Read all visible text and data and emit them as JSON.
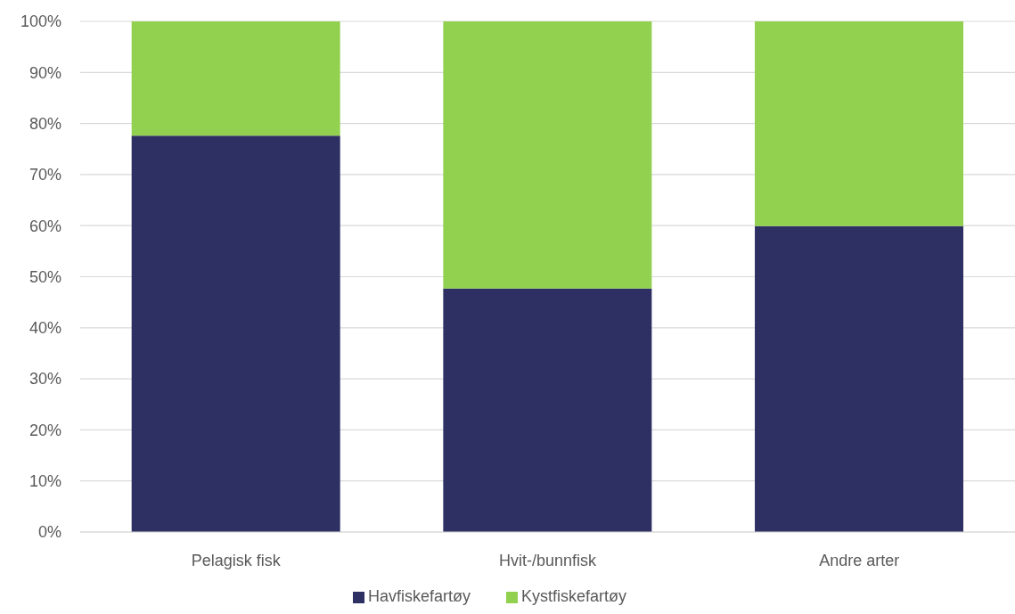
{
  "chart_data": {
    "type": "bar",
    "categories": [
      "Pelagisk fisk",
      "Hvit-/bunnfisk",
      "Andre arter"
    ],
    "series": [
      {
        "name": "Havfiskefartøy",
        "color": "#2e3064",
        "values": [
          77.6,
          47.7,
          59.9
        ]
      },
      {
        "name": "Kystfiskefartøy",
        "color": "#92d050",
        "values": [
          22.4,
          52.3,
          40.1
        ]
      }
    ],
    "stacked": true,
    "ylim": [
      0,
      100
    ],
    "yticks": [
      {
        "value": 0,
        "label": "0%"
      },
      {
        "value": 10,
        "label": "10%"
      },
      {
        "value": 20,
        "label": "20%"
      },
      {
        "value": 30,
        "label": "30%"
      },
      {
        "value": 40,
        "label": "40%"
      },
      {
        "value": 50,
        "label": "50%"
      },
      {
        "value": 60,
        "label": "60%"
      },
      {
        "value": 70,
        "label": "70%"
      },
      {
        "value": 80,
        "label": "80%"
      },
      {
        "value": 90,
        "label": "90%"
      },
      {
        "value": 100,
        "label": "100%"
      }
    ],
    "grid": "y",
    "legend": "bottom"
  }
}
